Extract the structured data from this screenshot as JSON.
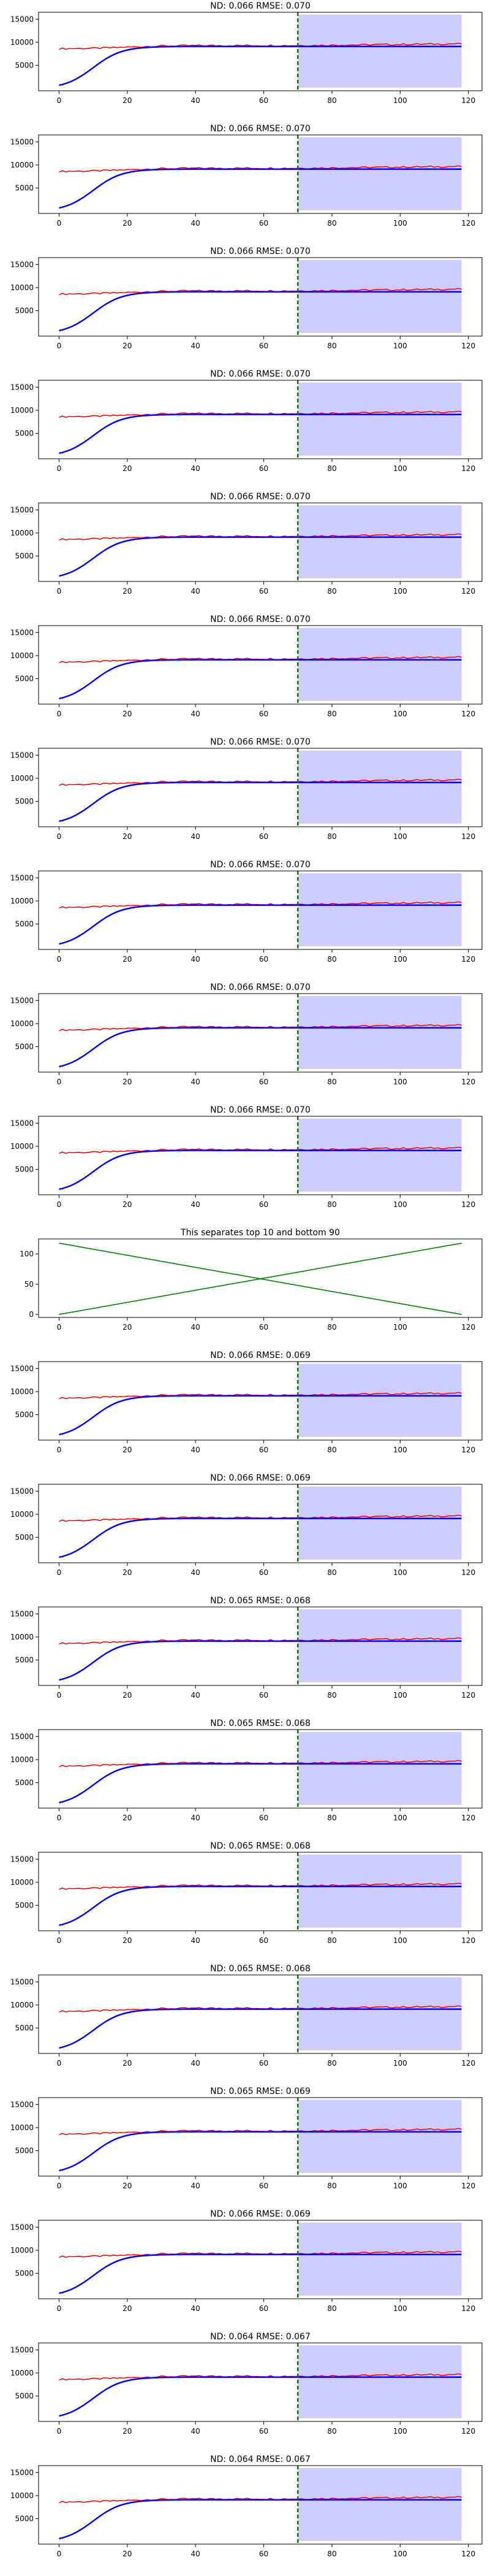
{
  "chart_data": [
    {
      "type": "line",
      "title": "ND:  0.066 RMSE:  0.070",
      "xlim": [
        -6,
        124
      ],
      "ylim": [
        -500,
        16500
      ],
      "xticks": [
        0,
        20,
        40,
        60,
        80,
        100,
        120
      ],
      "yticks": [
        5000,
        10000,
        15000
      ],
      "yticks_labeled": [
        5000,
        10000
      ],
      "vline_x": 70,
      "shaded_region": [
        70,
        118
      ],
      "series": [
        {
          "color": "#ff0000",
          "values": "target_noisy"
        },
        {
          "color": "#0000ff",
          "values": "forecast_sigmoid"
        }
      ]
    },
    {
      "type": "line",
      "title": "ND:  0.066 RMSE:  0.070",
      "xlim": [
        -6,
        124
      ],
      "ylim": [
        -500,
        16500
      ],
      "xticks": [
        0,
        20,
        40,
        60,
        80,
        100,
        120
      ],
      "yticks": [
        5000,
        10000,
        15000
      ],
      "vline_x": 70,
      "shaded_region": [
        70,
        118
      ],
      "series": [
        {
          "color": "#ff0000",
          "values": "target_noisy"
        },
        {
          "color": "#0000ff",
          "values": "forecast_sigmoid"
        }
      ]
    },
    {
      "type": "line",
      "title": "ND:  0.066 RMSE:  0.070",
      "xlim": [
        -6,
        124
      ],
      "ylim": [
        -500,
        16500
      ],
      "xticks": [
        0,
        20,
        40,
        60,
        80,
        100,
        120
      ],
      "yticks": [
        5000,
        10000,
        15000
      ],
      "vline_x": 70,
      "shaded_region": [
        70,
        118
      ],
      "series": [
        {
          "color": "#ff0000",
          "values": "target_noisy"
        },
        {
          "color": "#0000ff",
          "values": "forecast_sigmoid"
        }
      ]
    },
    {
      "type": "line",
      "title": "ND:  0.066 RMSE:  0.070",
      "xlim": [
        -6,
        124
      ],
      "ylim": [
        -500,
        16500
      ],
      "xticks": [
        0,
        20,
        40,
        60,
        80,
        100,
        120
      ],
      "yticks": [
        5000,
        10000,
        15000
      ],
      "vline_x": 70,
      "shaded_region": [
        70,
        118
      ],
      "series": [
        {
          "color": "#ff0000",
          "values": "target_noisy"
        },
        {
          "color": "#0000ff",
          "values": "forecast_sigmoid"
        }
      ]
    },
    {
      "type": "line",
      "title": "ND:  0.066 RMSE:  0.070",
      "xlim": [
        -6,
        124
      ],
      "ylim": [
        -500,
        16500
      ],
      "xticks": [
        0,
        20,
        40,
        60,
        80,
        100,
        120
      ],
      "yticks": [
        5000,
        10000,
        15000
      ],
      "vline_x": 70,
      "shaded_region": [
        70,
        118
      ],
      "series": [
        {
          "color": "#ff0000",
          "values": "target_noisy"
        },
        {
          "color": "#0000ff",
          "values": "forecast_sigmoid"
        }
      ]
    },
    {
      "type": "line",
      "title": "ND:  0.066 RMSE:  0.070",
      "xlim": [
        -6,
        124
      ],
      "ylim": [
        -500,
        16500
      ],
      "xticks": [
        0,
        20,
        40,
        60,
        80,
        100,
        120
      ],
      "yticks": [
        5000,
        10000,
        15000
      ],
      "vline_x": 70,
      "shaded_region": [
        70,
        118
      ],
      "series": [
        {
          "color": "#ff0000",
          "values": "target_noisy"
        },
        {
          "color": "#0000ff",
          "values": "forecast_sigmoid"
        }
      ]
    },
    {
      "type": "line",
      "title": "ND:  0.066 RMSE:  0.070",
      "xlim": [
        -6,
        124
      ],
      "ylim": [
        -500,
        16500
      ],
      "xticks": [
        0,
        20,
        40,
        60,
        80,
        100,
        120
      ],
      "yticks": [
        5000,
        10000,
        15000
      ],
      "vline_x": 70,
      "shaded_region": [
        70,
        118
      ],
      "series": [
        {
          "color": "#ff0000",
          "values": "target_noisy"
        },
        {
          "color": "#0000ff",
          "values": "forecast_sigmoid"
        }
      ]
    },
    {
      "type": "line",
      "title": "ND:  0.066 RMSE:  0.070",
      "xlim": [
        -6,
        124
      ],
      "ylim": [
        -500,
        16500
      ],
      "xticks": [
        0,
        20,
        40,
        60,
        80,
        100,
        120
      ],
      "yticks": [
        5000,
        10000,
        15000
      ],
      "vline_x": 70,
      "shaded_region": [
        70,
        118
      ],
      "series": [
        {
          "color": "#ff0000",
          "values": "target_noisy"
        },
        {
          "color": "#0000ff",
          "values": "forecast_sigmoid"
        }
      ]
    },
    {
      "type": "line",
      "title": "ND:  0.066 RMSE:  0.070",
      "xlim": [
        -6,
        124
      ],
      "ylim": [
        -500,
        16500
      ],
      "xticks": [
        0,
        20,
        40,
        60,
        80,
        100,
        120
      ],
      "yticks": [
        5000,
        10000,
        15000
      ],
      "vline_x": 70,
      "shaded_region": [
        70,
        118
      ],
      "series": [
        {
          "color": "#ff0000",
          "values": "target_noisy"
        },
        {
          "color": "#0000ff",
          "values": "forecast_sigmoid"
        }
      ]
    },
    {
      "type": "line",
      "title": "ND:  0.066 RMSE:  0.070",
      "xlim": [
        -6,
        124
      ],
      "ylim": [
        -500,
        16500
      ],
      "xticks": [
        0,
        20,
        40,
        60,
        80,
        100,
        120
      ],
      "yticks": [
        5000,
        10000,
        15000
      ],
      "vline_x": 70,
      "shaded_region": [
        70,
        118
      ],
      "series": [
        {
          "color": "#ff0000",
          "values": "target_noisy"
        },
        {
          "color": "#0000ff",
          "values": "forecast_sigmoid"
        }
      ]
    },
    {
      "type": "line",
      "title": "This separates top 10 and bottom 90",
      "xlim": [
        -6,
        124
      ],
      "ylim": [
        -5,
        125
      ],
      "xticks": [
        0,
        20,
        40,
        60,
        80,
        100,
        120
      ],
      "yticks": [
        0,
        50,
        100
      ],
      "series": [
        {
          "color": "#008000",
          "x": [
            0,
            118
          ],
          "y": [
            0,
            118
          ]
        },
        {
          "color": "#008000",
          "x": [
            0,
            118
          ],
          "y": [
            118,
            0
          ]
        }
      ]
    },
    {
      "type": "line",
      "title": "ND:  0.066 RMSE:  0.069",
      "xlim": [
        -6,
        124
      ],
      "ylim": [
        -500,
        16500
      ],
      "xticks": [
        0,
        20,
        40,
        60,
        80,
        100,
        120
      ],
      "yticks": [
        5000,
        10000,
        15000
      ],
      "vline_x": 70,
      "shaded_region": [
        70,
        118
      ],
      "series": [
        {
          "color": "#ff0000",
          "values": "target_noisy"
        },
        {
          "color": "#0000ff",
          "values": "forecast_sigmoid"
        }
      ]
    },
    {
      "type": "line",
      "title": "ND:  0.066 RMSE:  0.069",
      "xlim": [
        -6,
        124
      ],
      "ylim": [
        -500,
        16500
      ],
      "xticks": [
        0,
        20,
        40,
        60,
        80,
        100,
        120
      ],
      "yticks": [
        5000,
        10000,
        15000
      ],
      "vline_x": 70,
      "shaded_region": [
        70,
        118
      ],
      "series": [
        {
          "color": "#ff0000",
          "values": "target_noisy"
        },
        {
          "color": "#0000ff",
          "values": "forecast_sigmoid"
        }
      ]
    },
    {
      "type": "line",
      "title": "ND:  0.065 RMSE:  0.068",
      "xlim": [
        -6,
        124
      ],
      "ylim": [
        -500,
        16500
      ],
      "xticks": [
        0,
        20,
        40,
        60,
        80,
        100,
        120
      ],
      "yticks": [
        5000,
        10000,
        15000
      ],
      "vline_x": 70,
      "shaded_region": [
        70,
        118
      ],
      "series": [
        {
          "color": "#ff0000",
          "values": "target_noisy"
        },
        {
          "color": "#0000ff",
          "values": "forecast_sigmoid"
        }
      ]
    },
    {
      "type": "line",
      "title": "ND:  0.065 RMSE:  0.068",
      "xlim": [
        -6,
        124
      ],
      "ylim": [
        -500,
        16500
      ],
      "xticks": [
        0,
        20,
        40,
        60,
        80,
        100,
        120
      ],
      "yticks": [
        5000,
        10000,
        15000
      ],
      "vline_x": 70,
      "shaded_region": [
        70,
        118
      ],
      "series": [
        {
          "color": "#ff0000",
          "values": "target_noisy"
        },
        {
          "color": "#0000ff",
          "values": "forecast_sigmoid"
        }
      ]
    },
    {
      "type": "line",
      "title": "ND:  0.065 RMSE:  0.068",
      "xlim": [
        -6,
        124
      ],
      "ylim": [
        -500,
        16500
      ],
      "xticks": [
        0,
        20,
        40,
        60,
        80,
        100,
        120
      ],
      "yticks": [
        5000,
        10000,
        15000
      ],
      "vline_x": 70,
      "shaded_region": [
        70,
        118
      ],
      "series": [
        {
          "color": "#ff0000",
          "values": "target_noisy"
        },
        {
          "color": "#0000ff",
          "values": "forecast_sigmoid"
        }
      ]
    },
    {
      "type": "line",
      "title": "ND:  0.065 RMSE:  0.068",
      "xlim": [
        -6,
        124
      ],
      "ylim": [
        -500,
        16500
      ],
      "xticks": [
        0,
        20,
        40,
        60,
        80,
        100,
        120
      ],
      "yticks": [
        5000,
        10000,
        15000
      ],
      "vline_x": 70,
      "shaded_region": [
        70,
        118
      ],
      "series": [
        {
          "color": "#ff0000",
          "values": "target_noisy"
        },
        {
          "color": "#0000ff",
          "values": "forecast_sigmoid"
        }
      ]
    },
    {
      "type": "line",
      "title": "ND:  0.065 RMSE:  0.069",
      "xlim": [
        -6,
        124
      ],
      "ylim": [
        -500,
        16500
      ],
      "xticks": [
        0,
        20,
        40,
        60,
        80,
        100,
        120
      ],
      "yticks": [
        5000,
        10000,
        15000
      ],
      "vline_x": 70,
      "shaded_region": [
        70,
        118
      ],
      "series": [
        {
          "color": "#ff0000",
          "values": "target_noisy"
        },
        {
          "color": "#0000ff",
          "values": "forecast_sigmoid"
        }
      ]
    },
    {
      "type": "line",
      "title": "ND:  0.066 RMSE:  0.069",
      "xlim": [
        -6,
        124
      ],
      "ylim": [
        -500,
        16500
      ],
      "xticks": [
        0,
        20,
        40,
        60,
        80,
        100,
        120
      ],
      "yticks": [
        5000,
        10000,
        15000
      ],
      "vline_x": 70,
      "shaded_region": [
        70,
        118
      ],
      "series": [
        {
          "color": "#ff0000",
          "values": "target_noisy"
        },
        {
          "color": "#0000ff",
          "values": "forecast_sigmoid"
        }
      ]
    },
    {
      "type": "line",
      "title": "ND:  0.064 RMSE:  0.067",
      "xlim": [
        -6,
        124
      ],
      "ylim": [
        -500,
        16500
      ],
      "xticks": [
        0,
        20,
        40,
        60,
        80,
        100,
        120
      ],
      "yticks": [
        5000,
        10000,
        15000
      ],
      "vline_x": 70,
      "shaded_region": [
        70,
        118
      ],
      "series": [
        {
          "color": "#ff0000",
          "values": "target_noisy"
        },
        {
          "color": "#0000ff",
          "values": "forecast_sigmoid"
        }
      ]
    },
    {
      "type": "line",
      "title": "ND:  0.064 RMSE:  0.067",
      "xlim": [
        -6,
        124
      ],
      "ylim": [
        -500,
        16500
      ],
      "xticks": [
        0,
        20,
        40,
        60,
        80,
        100,
        120
      ],
      "yticks": [
        5000,
        10000,
        15000
      ],
      "vline_x": 70,
      "shaded_region": [
        70,
        118
      ],
      "series": [
        {
          "color": "#ff0000",
          "values": "target_noisy"
        },
        {
          "color": "#0000ff",
          "values": "forecast_sigmoid"
        }
      ]
    }
  ],
  "colors": {
    "target_line": "#ff0000",
    "forecast_line": "#0000ff",
    "separator_lines": "#008000",
    "vline": "#008000",
    "shaded_region": "#ccccff"
  }
}
